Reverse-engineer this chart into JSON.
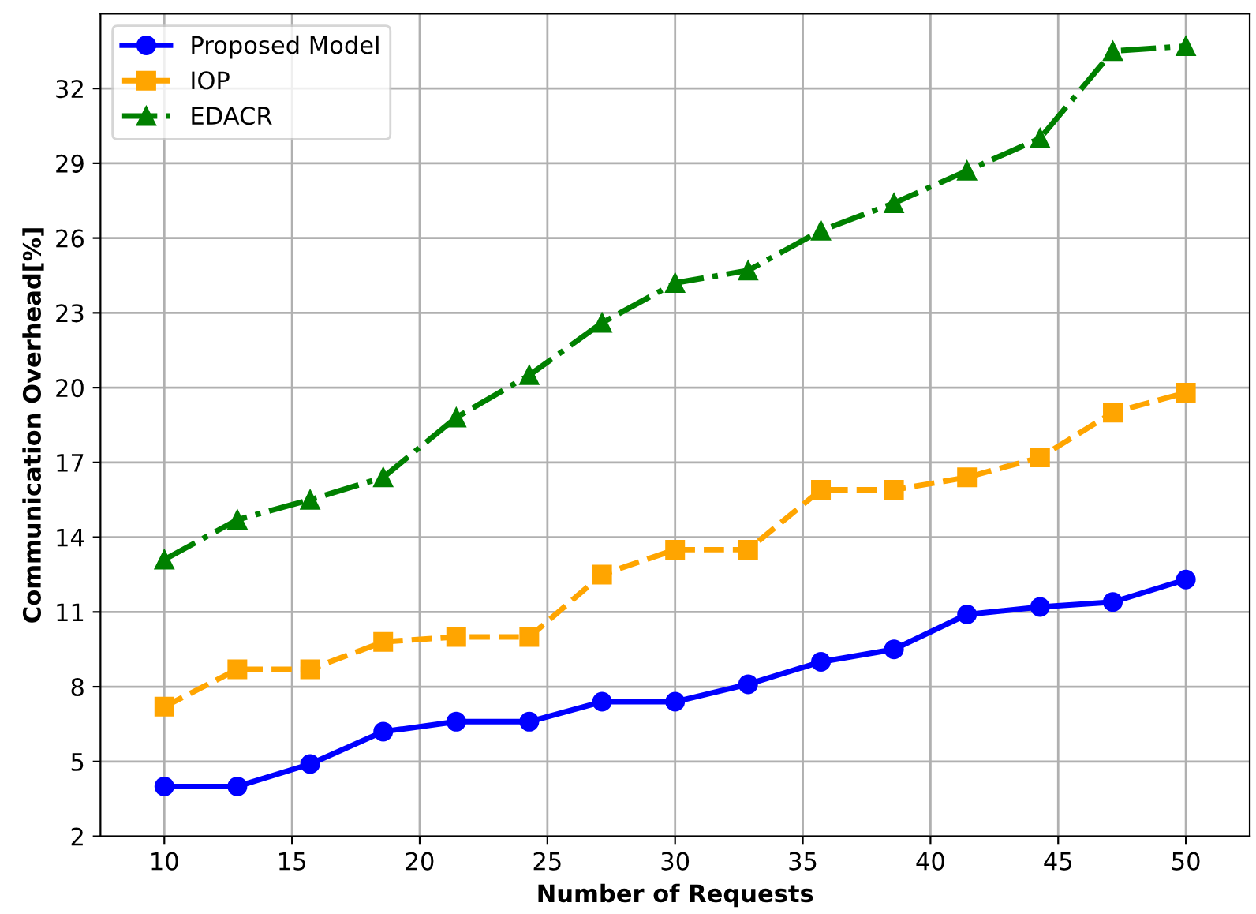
{
  "chart_data": {
    "type": "line",
    "xlabel": "Number of Requests",
    "ylabel": "Communication Overhead[%]",
    "x": [
      10,
      12.86,
      15.71,
      18.57,
      21.43,
      24.29,
      27.14,
      30,
      32.86,
      35.71,
      38.57,
      41.43,
      44.29,
      47.14,
      50
    ],
    "series": [
      {
        "name": "Proposed Model",
        "color": "#0000ff",
        "marker": "circle",
        "line_style": "solid",
        "values": [
          4.0,
          4.0,
          4.9,
          6.2,
          6.6,
          6.6,
          7.4,
          7.4,
          8.1,
          9.0,
          9.5,
          10.9,
          11.2,
          11.4,
          12.3
        ]
      },
      {
        "name": "IOP",
        "color": "#ffa500",
        "marker": "square",
        "line_style": "dashed",
        "values": [
          7.2,
          8.7,
          8.7,
          9.8,
          10.0,
          10.0,
          12.5,
          13.5,
          13.5,
          15.9,
          15.9,
          16.4,
          17.2,
          19.0,
          19.8
        ]
      },
      {
        "name": "EDACR",
        "color": "#008000",
        "marker": "triangle",
        "line_style": "dashdot",
        "values": [
          13.1,
          14.7,
          15.5,
          16.4,
          18.8,
          20.5,
          22.6,
          24.2,
          24.7,
          26.3,
          27.4,
          28.7,
          30.0,
          33.5,
          33.7
        ]
      }
    ],
    "xlim": [
      7.5,
      52.5
    ],
    "xticks": [
      10,
      15,
      20,
      25,
      30,
      35,
      40,
      45,
      50
    ],
    "ylim": [
      2,
      35
    ],
    "yticks": [
      2,
      5,
      8,
      11,
      14,
      17,
      20,
      23,
      26,
      29,
      32
    ],
    "grid": true,
    "legend": "top left"
  }
}
